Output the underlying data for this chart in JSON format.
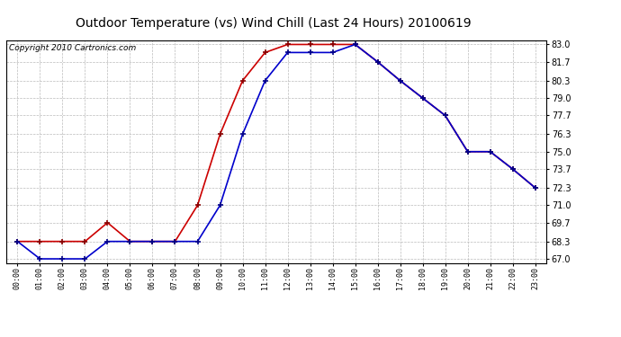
{
  "title": "Outdoor Temperature (vs) Wind Chill (Last 24 Hours) 20100619",
  "copyright": "Copyright 2010 Cartronics.com",
  "x_labels": [
    "00:00",
    "01:00",
    "02:00",
    "03:00",
    "04:00",
    "05:00",
    "06:00",
    "07:00",
    "08:00",
    "09:00",
    "10:00",
    "11:00",
    "12:00",
    "13:00",
    "14:00",
    "15:00",
    "16:00",
    "17:00",
    "18:00",
    "19:00",
    "20:00",
    "21:00",
    "22:00",
    "23:00"
  ],
  "temp_red": [
    68.3,
    68.3,
    68.3,
    68.3,
    69.7,
    68.3,
    68.3,
    68.3,
    71.0,
    76.3,
    80.3,
    82.4,
    83.0,
    83.0,
    83.0,
    83.0,
    81.7,
    80.3,
    79.0,
    77.7,
    75.0,
    75.0,
    73.7,
    72.3
  ],
  "wind_chill_blue": [
    68.3,
    67.0,
    67.0,
    67.0,
    68.3,
    68.3,
    68.3,
    68.3,
    68.3,
    71.0,
    76.3,
    80.3,
    82.4,
    82.4,
    82.4,
    83.0,
    81.7,
    80.3,
    79.0,
    77.7,
    75.0,
    75.0,
    73.7,
    72.3
  ],
  "ylim_min": 67.0,
  "ylim_max": 83.0,
  "yticks": [
    67.0,
    68.3,
    69.7,
    71.0,
    72.3,
    73.7,
    75.0,
    76.3,
    77.7,
    79.0,
    80.3,
    81.7,
    83.0
  ],
  "red_color": "#cc0000",
  "blue_color": "#0000cc",
  "bg_color": "#ffffff",
  "grid_color": "#bbbbbb",
  "title_fontsize": 10,
  "copyright_fontsize": 6.5
}
